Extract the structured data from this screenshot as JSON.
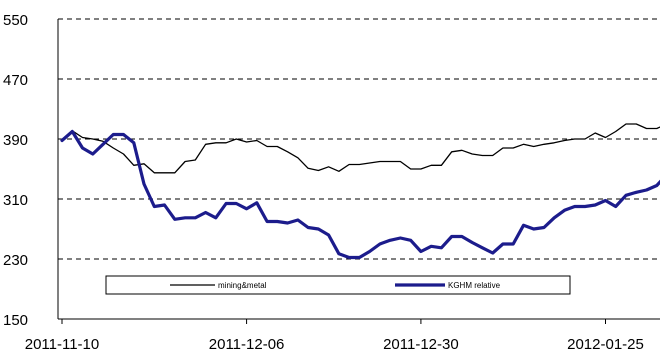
{
  "chart_data": {
    "type": "line",
    "title": "",
    "xlabel": "",
    "ylabel": "",
    "ylim": [
      150,
      550
    ],
    "yticks": [
      150,
      230,
      310,
      390,
      470,
      550
    ],
    "x_tick_labels": [
      "2011-11-10",
      "2011-12-06",
      "2011-12-30",
      "2012-01-25"
    ],
    "x_tick_index": [
      0,
      18,
      35,
      53
    ],
    "grid": "horizontal dashed",
    "legend_position": "lower-center",
    "series": [
      {
        "name": "mining&metal",
        "color": "#000000",
        "width": "thin",
        "values": [
          388,
          401,
          392,
          390,
          387,
          378,
          370,
          355,
          357,
          345,
          345,
          345,
          360,
          362,
          383,
          385,
          385,
          390,
          386,
          388,
          380,
          380,
          373,
          365,
          351,
          348,
          353,
          347,
          356,
          356,
          358,
          360,
          360,
          360,
          350,
          350,
          355,
          355,
          373,
          375,
          370,
          368,
          368,
          378,
          378,
          383,
          380,
          383,
          385,
          388,
          390,
          390,
          398,
          392,
          400,
          410,
          410,
          404,
          404,
          410
        ]
      },
      {
        "name": "KGHM relative",
        "color": "#1c1c8c",
        "width": "thick",
        "values": [
          388,
          400,
          378,
          370,
          383,
          396,
          396,
          385,
          330,
          300,
          302,
          283,
          285,
          285,
          292,
          285,
          304,
          304,
          297,
          305,
          280,
          280,
          278,
          282,
          272,
          270,
          262,
          237,
          232,
          232,
          240,
          250,
          255,
          258,
          255,
          240,
          247,
          245,
          260,
          260,
          252,
          245,
          238,
          250,
          250,
          275,
          270,
          272,
          285,
          295,
          300,
          300,
          302,
          308,
          300,
          315,
          319,
          322,
          328,
          343
        ]
      }
    ]
  }
}
